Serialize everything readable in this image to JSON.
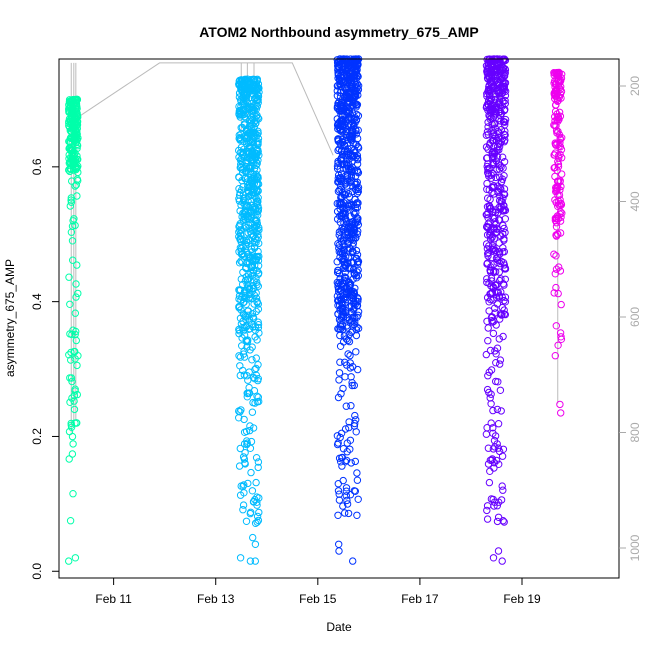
{
  "chart_data": {
    "type": "scatter",
    "title": "ATOM2 Northbound asymmetry_675_AMP",
    "xlabel": "Date",
    "ylabel": "asymmetry_675_AMP",
    "x_range_days": [
      9.93,
      20.9
    ],
    "ylim": [
      -0.01,
      0.76
    ],
    "y_ticks": [
      0.0,
      0.2,
      0.4,
      0.6
    ],
    "y_tick_labels": [
      "0.0",
      "0.2",
      "0.4",
      "0.6"
    ],
    "x_ticks_days": [
      11,
      13,
      15,
      17,
      19
    ],
    "x_tick_labels": [
      "Feb 11",
      "Feb 13",
      "Feb 15",
      "Feb 17",
      "Feb 19"
    ],
    "y2_ticks": [
      200,
      400,
      600,
      800,
      1000
    ],
    "y2_tick_labels": [
      "200",
      "400",
      "600",
      "800",
      "1000"
    ],
    "y2_range": [
      160,
      1050
    ],
    "grid": false,
    "legend": "none",
    "clusters": [
      {
        "day_start": 10.12,
        "day_end": 10.3,
        "color": "#00ffaa",
        "core_min": 0.52,
        "core_max": 0.7,
        "tail_min": 0.16,
        "n": 260,
        "outliers": [
          0.115,
          0.075,
          0.02,
          0.015
        ]
      },
      {
        "day_start": 13.45,
        "day_end": 13.85,
        "color": "#00bbff",
        "core_min": 0.08,
        "core_max": 0.73,
        "tail_min": 0.07,
        "n": 700,
        "outliers": [
          0.05,
          0.04,
          0.02,
          0.015,
          0.015
        ]
      },
      {
        "day_start": 15.38,
        "day_end": 15.8,
        "color": "#0033ff",
        "core_min": 0.09,
        "core_max": 0.76,
        "tail_min": 0.08,
        "n": 800,
        "outliers": [
          0.04,
          0.03,
          0.015
        ]
      },
      {
        "day_start": 18.3,
        "day_end": 18.68,
        "color": "#6600ff",
        "core_min": 0.1,
        "core_max": 0.76,
        "tail_min": 0.07,
        "n": 520,
        "outliers": [
          0.08,
          0.075,
          0.03,
          0.02,
          0.015
        ]
      },
      {
        "day_start": 19.62,
        "day_end": 19.78,
        "color": "#ee00ee",
        "core_min": 0.32,
        "core_max": 0.74,
        "tail_min": 0.235,
        "n": 160,
        "outliers": [
          0.235
        ]
      }
    ],
    "secondary_line": {
      "color": "#bbbbbb",
      "points_days_y2": [
        [
          10.2,
          260
        ],
        [
          11.9,
          160
        ],
        [
          14.5,
          160
        ],
        [
          15.3,
          320
        ]
      ]
    },
    "vertical_traces": [
      {
        "day": 10.17,
        "y2_top": 160,
        "y2_bottom": 800
      },
      {
        "day": 10.22,
        "y2_top": 160,
        "y2_bottom": 790
      },
      {
        "day": 10.26,
        "y2_top": 160,
        "y2_bottom": 780
      },
      {
        "day": 13.5,
        "y2_top": 160,
        "y2_bottom": 280
      },
      {
        "day": 13.62,
        "y2_top": 160,
        "y2_bottom": 290
      },
      {
        "day": 13.75,
        "y2_top": 160,
        "y2_bottom": 270
      },
      {
        "day": 15.45,
        "y2_top": 160,
        "y2_bottom": 300
      },
      {
        "day": 15.55,
        "y2_top": 160,
        "y2_bottom": 290
      },
      {
        "day": 15.65,
        "y2_top": 160,
        "y2_bottom": 300
      },
      {
        "day": 18.35,
        "y2_top": 160,
        "y2_bottom": 290
      },
      {
        "day": 18.45,
        "y2_top": 160,
        "y2_bottom": 280
      },
      {
        "day": 18.6,
        "y2_top": 160,
        "y2_bottom": 300
      },
      {
        "day": 19.7,
        "y2_top": 250,
        "y2_bottom": 750
      }
    ]
  }
}
